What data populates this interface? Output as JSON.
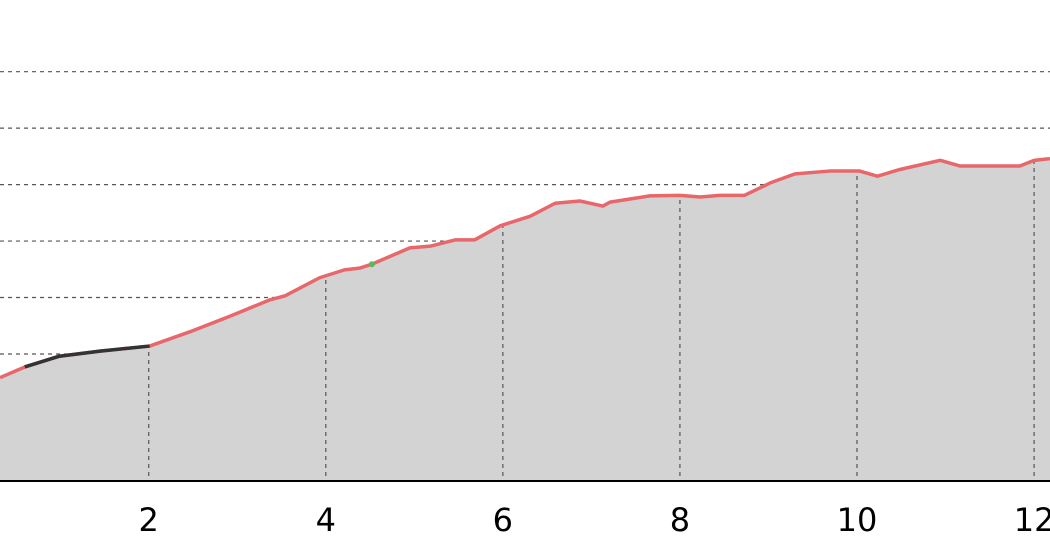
{
  "chart_data": {
    "type": "line",
    "xlim": [
      0.32,
      12.18
    ],
    "ylim": [
      0.75,
      9.27
    ],
    "xticks": [
      2,
      4,
      6,
      8,
      10,
      12
    ],
    "ygrid": [
      1,
      2,
      3,
      4,
      5,
      6,
      7,
      8
    ],
    "fill_color": "#d3d3d3",
    "series": [
      {
        "color": "#e8676b",
        "x": [
          0.32,
          0.6,
          0.99,
          1.45,
          2.01,
          2.46,
          2.92,
          3.37,
          3.54,
          3.93,
          4.21,
          4.38,
          4.52,
          4.95,
          5.18,
          5.46,
          5.68,
          5.97,
          6.31,
          6.59,
          6.87,
          7.13,
          7.21,
          7.66,
          8.0,
          8.23,
          8.45,
          8.73,
          9.02,
          9.3,
          9.69,
          10.03,
          10.23,
          10.49,
          10.94,
          11.16,
          11.5,
          11.84,
          12.0,
          12.18
        ],
        "values": [
          2.58,
          2.77,
          2.96,
          3.05,
          3.14,
          3.39,
          3.67,
          3.96,
          4.03,
          4.35,
          4.49,
          4.52,
          4.59,
          4.88,
          4.91,
          5.02,
          5.02,
          5.27,
          5.44,
          5.67,
          5.71,
          5.62,
          5.69,
          5.8,
          5.81,
          5.78,
          5.81,
          5.81,
          6.03,
          6.19,
          6.24,
          6.24,
          6.15,
          6.27,
          6.43,
          6.33,
          6.33,
          6.33,
          6.43,
          6.46
        ]
      },
      {
        "color": "#333333",
        "x": [
          0.6,
          0.99,
          1.45,
          2.01
        ],
        "values": [
          2.77,
          2.96,
          3.05,
          3.14
        ]
      },
      {
        "color": "#5cb85c",
        "x": [
          4.52
        ],
        "values": [
          4.59
        ]
      }
    ]
  }
}
